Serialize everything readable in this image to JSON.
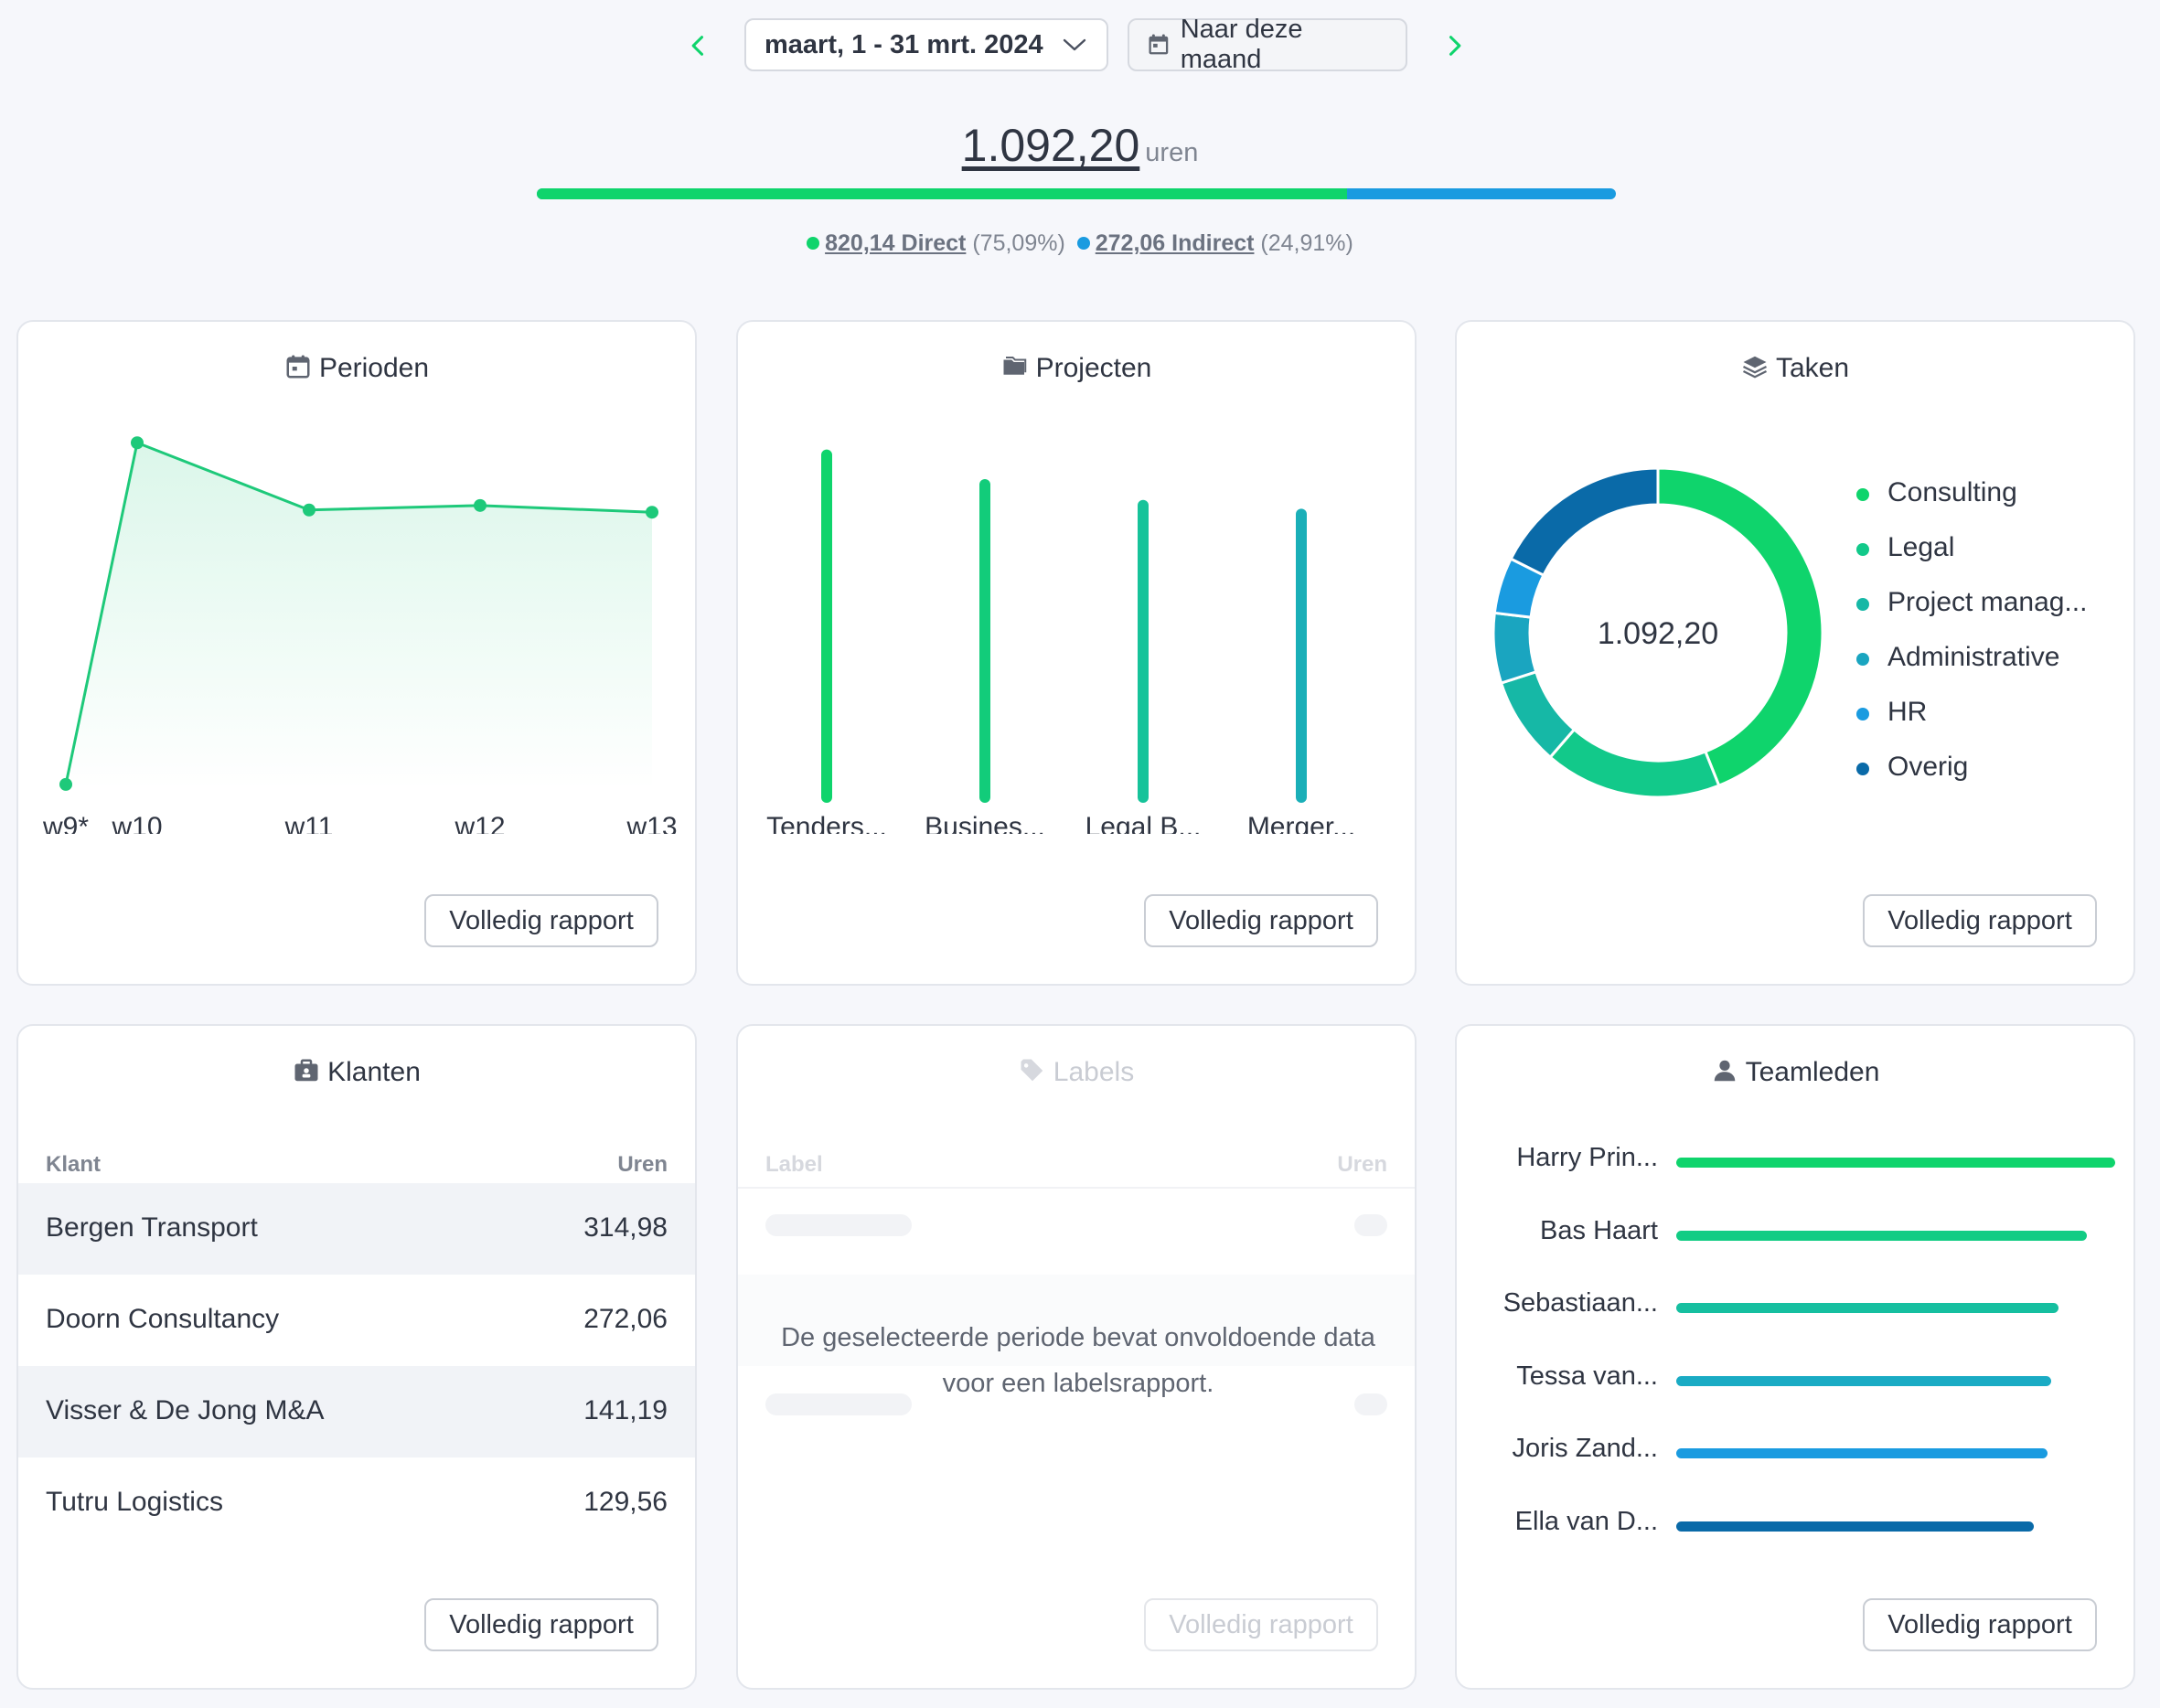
{
  "header": {
    "period_label": "maart, 1 - 31 mrt. 2024",
    "today_label": "Naar deze maand",
    "prev_icon": "chevron-left-icon",
    "next_icon": "chevron-right-icon"
  },
  "total": {
    "value": "1.092,20",
    "unit": "uren",
    "direct_fraction": 0.7509,
    "direct_value": "820,14 Direct",
    "direct_pct": "(75,09%)",
    "indirect_value": "272,06 Indirect",
    "indirect_pct": "(24,91%)",
    "colors": {
      "direct": "#0fd46c",
      "indirect": "#1a9be0"
    }
  },
  "report_label": "Volledig rapport",
  "perioden": {
    "title": "Perioden",
    "icon": "calendar-icon",
    "chart_data": {
      "type": "area",
      "categories": [
        "w9*",
        "w10",
        "w11",
        "w12",
        "w13"
      ],
      "values": [
        5,
        310,
        250,
        254,
        248
      ],
      "ylim": [
        0,
        320
      ],
      "color": "#1ec97a"
    }
  },
  "projecten": {
    "title": "Projecten",
    "icon": "folders-icon",
    "chart_data": {
      "type": "bar",
      "categories": [
        "Tenders...",
        "Busines...",
        "Legal B...",
        "Merger..."
      ],
      "values": [
        312,
        285,
        266,
        258
      ],
      "ylim": [
        0,
        320
      ],
      "colors": [
        "#0fd46c",
        "#12cc7a",
        "#16c39a",
        "#1aafb8"
      ]
    }
  },
  "taken": {
    "title": "Taken",
    "icon": "layers-icon",
    "center_label": "1.092,20",
    "chart_data": {
      "type": "pie",
      "categories": [
        "Consulting",
        "Legal",
        "Project manag...",
        "Administrative",
        "HR",
        "Overig"
      ],
      "values": [
        480,
        190,
        95,
        75,
        60,
        192
      ],
      "colors": [
        "#0fd46c",
        "#12c98a",
        "#16b8a6",
        "#1aa5c0",
        "#1a9be0",
        "#0a6aa8"
      ]
    }
  },
  "klanten": {
    "title": "Klanten",
    "icon": "briefcase-icon",
    "col_name": "Klant",
    "col_hours": "Uren",
    "rows": [
      {
        "name": "Bergen Transport",
        "hours": "314,98"
      },
      {
        "name": "Doorn Consultancy",
        "hours": "272,06"
      },
      {
        "name": "Visser & De Jong M&A",
        "hours": "141,19"
      },
      {
        "name": "Tutru Logistics",
        "hours": "129,56"
      }
    ]
  },
  "labels": {
    "title": "Labels",
    "icon": "tag-icon",
    "col_name": "Label",
    "col_hours": "Uren",
    "message": "De geselecteerde periode bevat onvoldoende data voor een labelsrapport."
  },
  "teamleden": {
    "title": "Teamleden",
    "icon": "user-icon",
    "chart_data": {
      "type": "bar",
      "orientation": "horizontal",
      "categories": [
        "Harry Prin...",
        "Bas Haart",
        "Sebastiaan...",
        "Tessa van...",
        "Joris Zand...",
        "Ella van D..."
      ],
      "values": [
        200,
        187,
        174,
        171,
        169,
        163
      ],
      "xlim": [
        0,
        200
      ],
      "colors": [
        "#0fd46c",
        "#12cc84",
        "#16bfa0",
        "#1aabc4",
        "#1a9be0",
        "#0a6aa8"
      ]
    }
  }
}
